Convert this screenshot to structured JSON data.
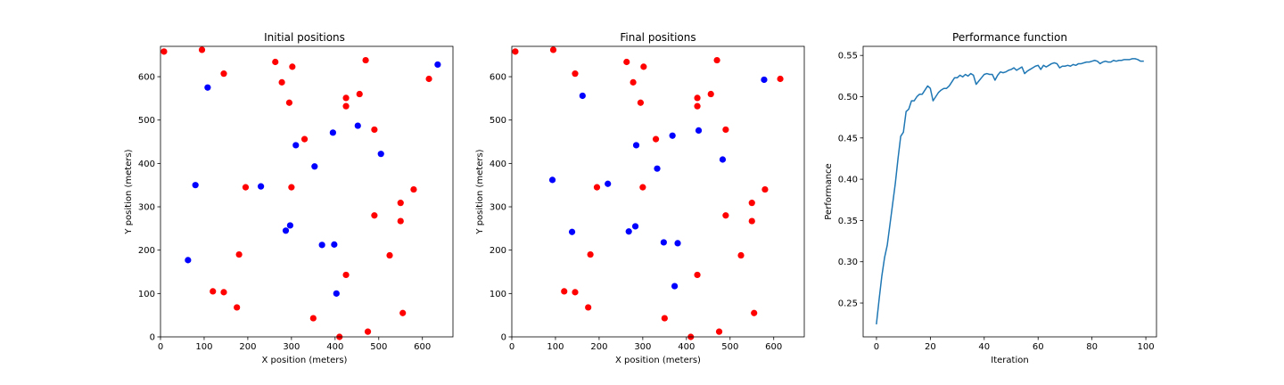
{
  "colors": {
    "red": "#ff0000",
    "blue": "#0000ff",
    "line": "#1f77b4"
  },
  "chart_data": [
    {
      "type": "scatter",
      "title": "Initial positions",
      "xlabel": "X position (meters)",
      "ylabel": "Y position (meters)",
      "xlim": [
        0,
        670
      ],
      "ylim": [
        0,
        670
      ],
      "xticks": [
        0,
        100,
        200,
        300,
        400,
        500,
        600
      ],
      "yticks": [
        0,
        100,
        200,
        300,
        400,
        500,
        600
      ],
      "grid": false,
      "series": [
        {
          "color": "red",
          "points": [
            [
              8,
              658
            ],
            [
              95,
              662
            ],
            [
              145,
              607
            ],
            [
              263,
              634
            ],
            [
              302,
              623
            ],
            [
              470,
              638
            ],
            [
              615,
              595
            ],
            [
              278,
              587
            ],
            [
              425,
              551
            ],
            [
              456,
              560
            ],
            [
              295,
              540
            ],
            [
              425,
              532
            ],
            [
              490,
              478
            ],
            [
              330,
              456
            ],
            [
              195,
              345
            ],
            [
              300,
              345
            ],
            [
              580,
              340
            ],
            [
              550,
              309
            ],
            [
              490,
              280
            ],
            [
              550,
              267
            ],
            [
              180,
              190
            ],
            [
              525,
              188
            ],
            [
              120,
              105
            ],
            [
              145,
              103
            ],
            [
              425,
              143
            ],
            [
              175,
              68
            ],
            [
              350,
              43
            ],
            [
              555,
              55
            ],
            [
              475,
              12
            ],
            [
              410,
              0
            ]
          ]
        },
        {
          "color": "blue",
          "points": [
            [
              635,
              628
            ],
            [
              108,
              575
            ],
            [
              452,
              487
            ],
            [
              395,
              471
            ],
            [
              310,
              442
            ],
            [
              505,
              422
            ],
            [
              353,
              393
            ],
            [
              80,
              350
            ],
            [
              230,
              347
            ],
            [
              297,
              257
            ],
            [
              287,
              245
            ],
            [
              370,
              212
            ],
            [
              398,
              213
            ],
            [
              63,
              177
            ],
            [
              403,
              100
            ]
          ]
        }
      ]
    },
    {
      "type": "scatter",
      "title": "Final positions",
      "xlabel": "X position (meters)",
      "ylabel": "Y position (meters)",
      "xlim": [
        0,
        670
      ],
      "ylim": [
        0,
        670
      ],
      "xticks": [
        0,
        100,
        200,
        300,
        400,
        500,
        600
      ],
      "yticks": [
        0,
        100,
        200,
        300,
        400,
        500,
        600
      ],
      "grid": false,
      "series": [
        {
          "color": "red",
          "points": [
            [
              8,
              658
            ],
            [
              95,
              662
            ],
            [
              145,
              607
            ],
            [
              263,
              634
            ],
            [
              302,
              623
            ],
            [
              470,
              638
            ],
            [
              615,
              595
            ],
            [
              278,
              587
            ],
            [
              425,
              551
            ],
            [
              456,
              560
            ],
            [
              295,
              540
            ],
            [
              425,
              532
            ],
            [
              490,
              478
            ],
            [
              330,
              456
            ],
            [
              195,
              345
            ],
            [
              300,
              345
            ],
            [
              580,
              340
            ],
            [
              550,
              309
            ],
            [
              490,
              280
            ],
            [
              550,
              267
            ],
            [
              180,
              190
            ],
            [
              525,
              188
            ],
            [
              120,
              105
            ],
            [
              145,
              103
            ],
            [
              425,
              143
            ],
            [
              175,
              68
            ],
            [
              350,
              43
            ],
            [
              555,
              55
            ],
            [
              475,
              12
            ],
            [
              410,
              0
            ]
          ]
        },
        {
          "color": "blue",
          "points": [
            [
              578,
              593
            ],
            [
              162,
              556
            ],
            [
              428,
              476
            ],
            [
              368,
              464
            ],
            [
              285,
              442
            ],
            [
              483,
              409
            ],
            [
              333,
              388
            ],
            [
              93,
              362
            ],
            [
              220,
              353
            ],
            [
              283,
              255
            ],
            [
              268,
              243
            ],
            [
              138,
              242
            ],
            [
              348,
              218
            ],
            [
              380,
              216
            ],
            [
              373,
              117
            ]
          ]
        }
      ]
    },
    {
      "type": "line",
      "title": "Performance function",
      "xlabel": "Iteration",
      "ylabel": "Performance",
      "xlim": [
        -4.95,
        103.95
      ],
      "ylim": [
        0.209,
        0.561
      ],
      "xticks": [
        0,
        20,
        40,
        60,
        80,
        100
      ],
      "yticks": [
        0.25,
        0.3,
        0.35,
        0.4,
        0.45,
        0.5,
        0.55
      ],
      "ytick_labels": [
        "0.25",
        "0.30",
        "0.35",
        "0.40",
        "0.45",
        "0.50",
        "0.55"
      ],
      "grid": false,
      "series": [
        {
          "color": "line",
          "x": [
            0,
            1,
            2,
            3,
            4,
            5,
            6,
            7,
            8,
            9,
            10,
            11,
            12,
            13,
            14,
            15,
            16,
            17,
            18,
            19,
            20,
            21,
            22,
            23,
            24,
            25,
            26,
            27,
            28,
            29,
            30,
            31,
            32,
            33,
            34,
            35,
            36,
            37,
            38,
            39,
            40,
            41,
            42,
            43,
            44,
            45,
            46,
            47,
            48,
            49,
            50,
            51,
            52,
            53,
            54,
            55,
            56,
            57,
            58,
            59,
            60,
            61,
            62,
            63,
            64,
            65,
            66,
            67,
            68,
            69,
            70,
            71,
            72,
            73,
            74,
            75,
            76,
            77,
            78,
            79,
            80,
            81,
            82,
            83,
            84,
            85,
            86,
            87,
            88,
            89,
            90,
            91,
            92,
            93,
            94,
            95,
            96,
            97,
            98,
            99
          ],
          "values": [
            0.225,
            0.255,
            0.283,
            0.305,
            0.32,
            0.345,
            0.37,
            0.395,
            0.425,
            0.452,
            0.457,
            0.482,
            0.485,
            0.495,
            0.495,
            0.5,
            0.503,
            0.503,
            0.508,
            0.513,
            0.51,
            0.495,
            0.5,
            0.505,
            0.508,
            0.51,
            0.51,
            0.513,
            0.518,
            0.523,
            0.523,
            0.526,
            0.524,
            0.527,
            0.525,
            0.528,
            0.526,
            0.515,
            0.519,
            0.523,
            0.527,
            0.528,
            0.527,
            0.527,
            0.52,
            0.526,
            0.53,
            0.529,
            0.53,
            0.532,
            0.533,
            0.535,
            0.532,
            0.534,
            0.536,
            0.528,
            0.531,
            0.533,
            0.535,
            0.537,
            0.538,
            0.533,
            0.538,
            0.536,
            0.538,
            0.54,
            0.541,
            0.54,
            0.535,
            0.537,
            0.537,
            0.538,
            0.537,
            0.539,
            0.538,
            0.54,
            0.54,
            0.541,
            0.542,
            0.542,
            0.543,
            0.544,
            0.543,
            0.54,
            0.542,
            0.543,
            0.542,
            0.542,
            0.544,
            0.543,
            0.544,
            0.544,
            0.545,
            0.545,
            0.545,
            0.546,
            0.546,
            0.545,
            0.543,
            0.543
          ]
        }
      ]
    }
  ]
}
